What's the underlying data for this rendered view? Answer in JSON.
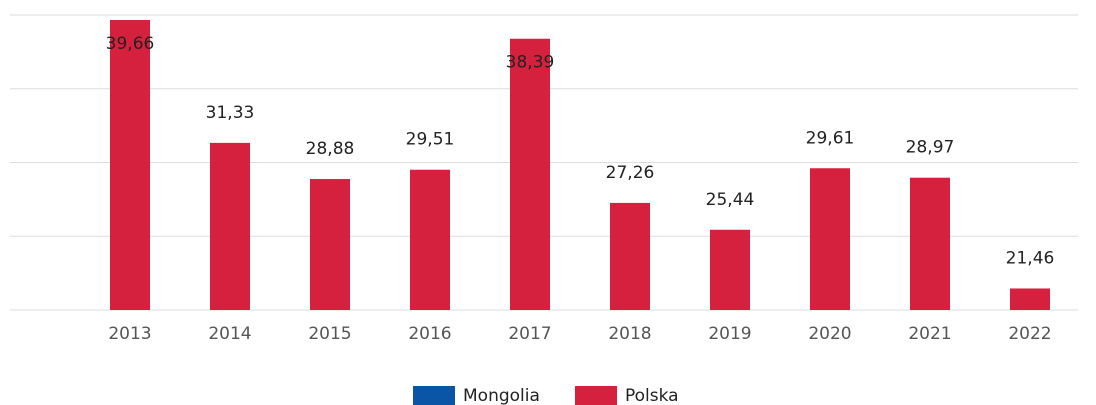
{
  "chart_data": {
    "type": "bar",
    "categories": [
      "2013",
      "2014",
      "2015",
      "2016",
      "2017",
      "2018",
      "2019",
      "2020",
      "2021",
      "2022"
    ],
    "series": [
      {
        "name": "Mongolia",
        "color": "#0a55a5",
        "values": [
          null,
          null,
          null,
          null,
          null,
          null,
          null,
          null,
          null,
          null
        ]
      },
      {
        "name": "Polska",
        "color": "#d6213e",
        "values": [
          39.66,
          31.33,
          28.88,
          29.51,
          38.39,
          27.26,
          25.44,
          29.61,
          28.97,
          21.46
        ],
        "value_labels": [
          "39,66",
          "31,33",
          "28,88",
          "29,51",
          "38,39",
          "27,26",
          "25,44",
          "29,61",
          "28,97",
          "21,46"
        ]
      }
    ],
    "ylim": [
      20,
      40
    ],
    "yticks": [
      20,
      25,
      30,
      35,
      40
    ],
    "grid": true,
    "legend": "bottom"
  }
}
